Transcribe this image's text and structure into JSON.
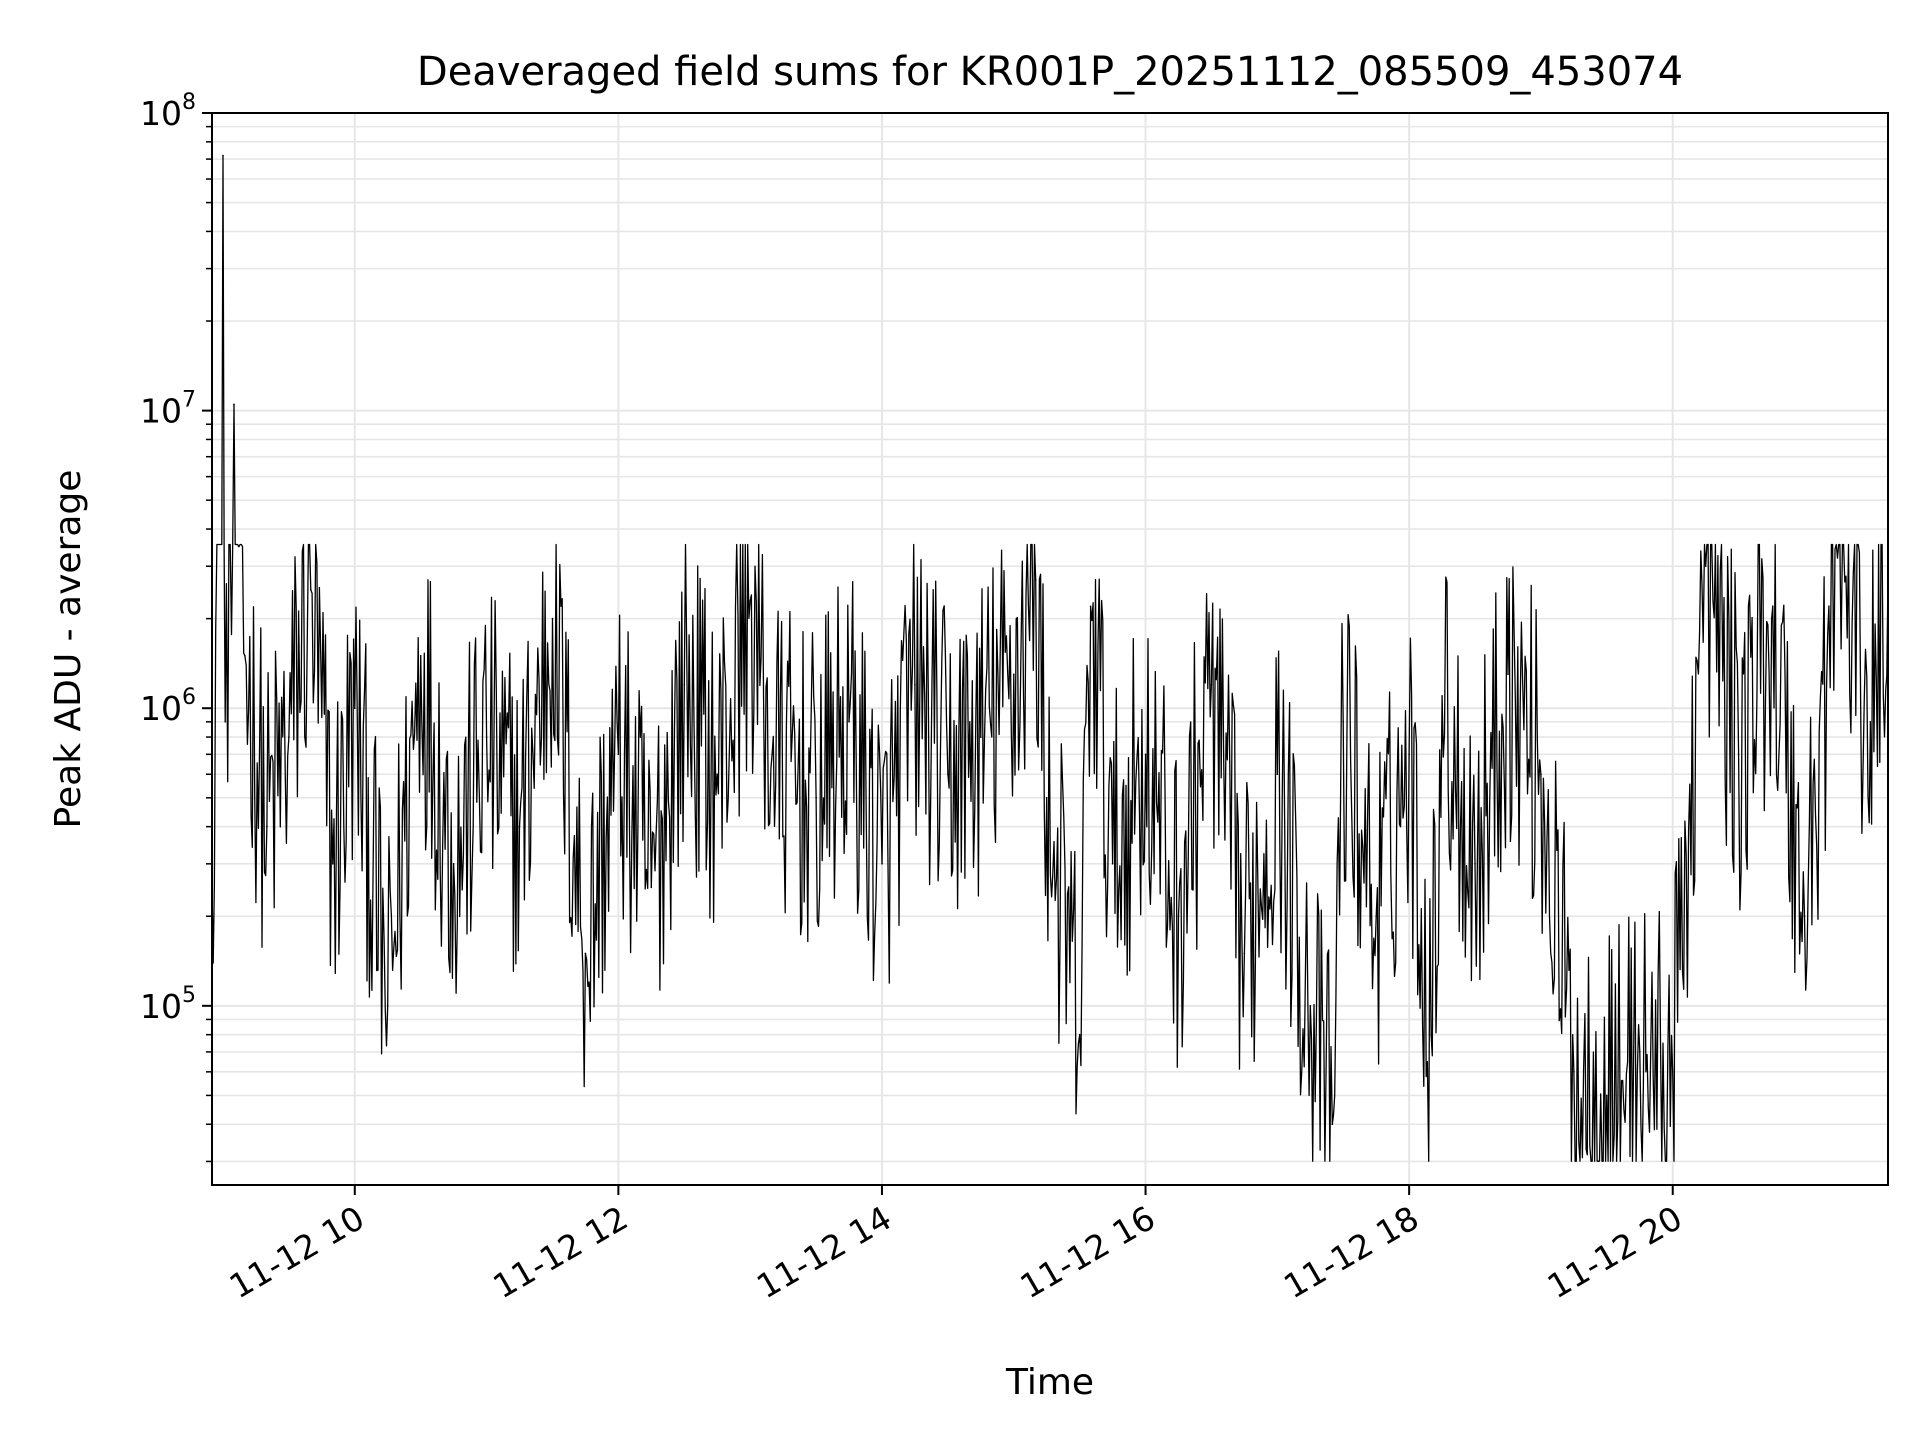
{
  "chart_data": {
    "type": "line",
    "title": "Deaveraged field sums for KR001P_20251112_085509_453074",
    "xlabel": "Time",
    "ylabel": "Peak ADU - average",
    "x_scale": "time",
    "y_scale": "log",
    "xlim": [
      "2025-11-12 08:55",
      "2025-11-12 21:38"
    ],
    "ylim": [
      25000,
      100000000
    ],
    "x_ticks": [
      "11-12 10",
      "11-12 12",
      "11-12 14",
      "11-12 16",
      "11-12 18",
      "11-12 20"
    ],
    "y_ticks": [
      {
        "value": 100000,
        "base": "10",
        "exp": "5"
      },
      {
        "value": 1000000,
        "base": "10",
        "exp": "6"
      },
      {
        "value": 10000000,
        "base": "10",
        "exp": "7"
      },
      {
        "value": 100000000,
        "base": "10",
        "exp": "8"
      }
    ],
    "grid": true,
    "legend": "none",
    "line_color": "#000000",
    "grid_color": "#e6e6e6",
    "series": [
      {
        "x": [
          "2025-11-12 08:55",
          "2025-11-12 09:00",
          "2025-11-12 09:01",
          "2025-11-12 09:05",
          "2025-11-12 09:10",
          "2025-11-12 09:20",
          "2025-11-12 09:30",
          "2025-11-12 09:40",
          "2025-11-12 09:50",
          "2025-11-12 10:00",
          "2025-11-12 10:15",
          "2025-11-12 10:30",
          "2025-11-12 10:45",
          "2025-11-12 11:00",
          "2025-11-12 11:15",
          "2025-11-12 11:30",
          "2025-11-12 11:45",
          "2025-11-12 12:00",
          "2025-11-12 12:15",
          "2025-11-12 12:30",
          "2025-11-12 12:45",
          "2025-11-12 13:00",
          "2025-11-12 13:10",
          "2025-11-12 13:30",
          "2025-11-12 13:45",
          "2025-11-12 14:00",
          "2025-11-12 14:15",
          "2025-11-12 14:30",
          "2025-11-12 14:45",
          "2025-11-12 15:00",
          "2025-11-12 15:10",
          "2025-11-12 15:15",
          "2025-11-12 15:30",
          "2025-11-12 15:35",
          "2025-11-12 15:45",
          "2025-11-12 16:00",
          "2025-11-12 16:15",
          "2025-11-12 16:30",
          "2025-11-12 16:45",
          "2025-11-12 17:00",
          "2025-11-12 17:15",
          "2025-11-12 17:25",
          "2025-11-12 17:30",
          "2025-11-12 17:45",
          "2025-11-12 18:00",
          "2025-11-12 18:10",
          "2025-11-12 18:15",
          "2025-11-12 18:30",
          "2025-11-12 18:45",
          "2025-11-12 19:00",
          "2025-11-12 19:15",
          "2025-11-12 19:30",
          "2025-11-12 19:45",
          "2025-11-12 20:00",
          "2025-11-12 20:15",
          "2025-11-12 20:30",
          "2025-11-12 20:45",
          "2025-11-12 21:00",
          "2025-11-12 21:15",
          "2025-11-12 21:30",
          "2025-11-12 21:38"
        ],
        "y": [
          250000,
          72000000,
          900000,
          10500000,
          1500000,
          400000,
          800000,
          2500000,
          300000,
          1000000,
          100000,
          1500000,
          300000,
          800000,
          400000,
          2000000,
          150000,
          700000,
          250000,
          1200000,
          600000,
          2300000,
          700000,
          500000,
          900000,
          300000,
          1200000,
          600000,
          800000,
          1300000,
          2700000,
          500000,
          80000,
          2200000,
          300000,
          700000,
          200000,
          1200000,
          150000,
          600000,
          100000,
          40000,
          900000,
          200000,
          700000,
          80000,
          1100000,
          300000,
          1300000,
          600000,
          60000,
          50000,
          70000,
          60000,
          3000000,
          700000,
          2000000,
          200000,
          3200000,
          900000,
          2800000
        ]
      }
    ]
  }
}
